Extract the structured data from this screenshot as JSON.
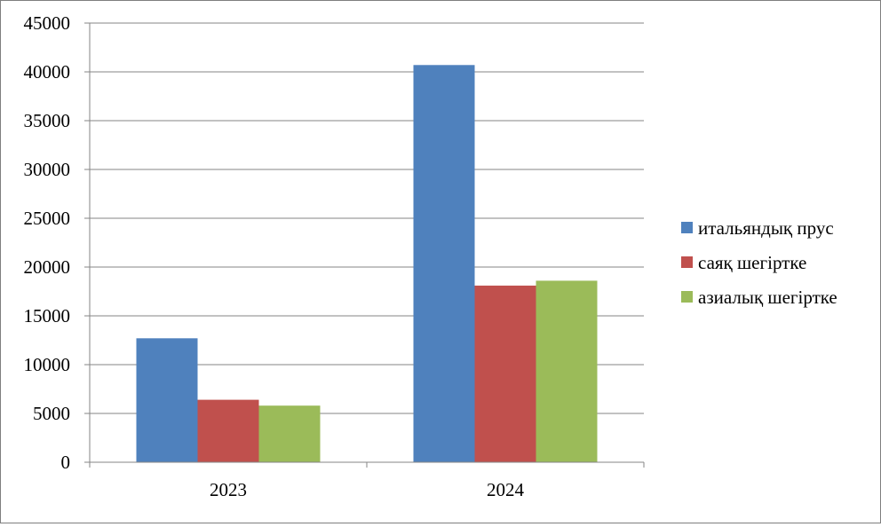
{
  "chart_data": {
    "type": "bar",
    "title": "",
    "xlabel": "",
    "ylabel": "",
    "categories": [
      "2023",
      "2024"
    ],
    "series": [
      {
        "name": "итальяндық прус",
        "color": "#4f81bd",
        "values": [
          12700,
          40700
        ]
      },
      {
        "name": "саяқ шегіртке",
        "color": "#c0504d",
        "values": [
          6400,
          18100
        ]
      },
      {
        "name": "азиалық шегіртке",
        "color": "#9bbb59",
        "values": [
          5800,
          18600
        ]
      }
    ],
    "ylim": [
      0,
      45000
    ],
    "yticks": [
      0,
      5000,
      10000,
      15000,
      20000,
      25000,
      30000,
      35000,
      40000,
      45000
    ],
    "ytick_labels": [
      "0",
      "5000",
      "10000",
      "15000",
      "20000",
      "25000",
      "30000",
      "35000",
      "40000",
      "45000"
    ],
    "grid": true,
    "legend_position": "right"
  }
}
